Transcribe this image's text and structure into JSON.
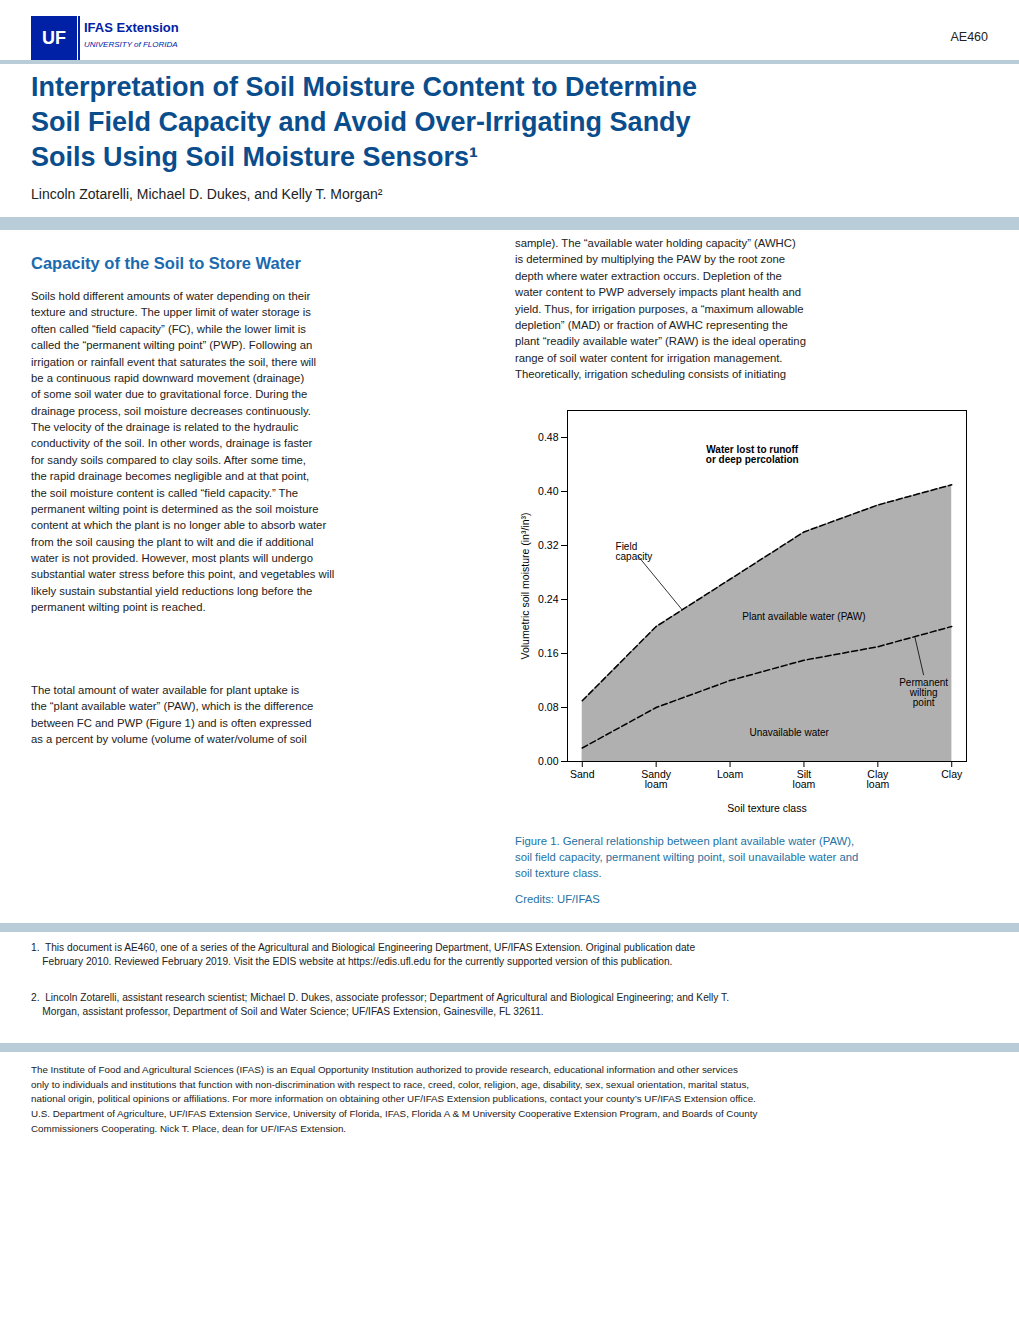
{
  "page": {
    "logo": "UF",
    "brand": "IFAS Extension",
    "brand_sub": "UNIVERSITY of FLORIDA",
    "doc_id": "AE460",
    "title": "Interpretation of Soil Moisture Content to Determine\nSoil Field Capacity and Avoid Over-Irrigating Sandy\nSoils Using Soil Moisture Sensors¹",
    "authors": "Lincoln Zotarelli, Michael D. Dukes, and Kelly T. Morgan²",
    "section_title": "Capacity of the Soil to Store Water",
    "body_col1": [
      "Soils hold different amounts of water depending on their\ntexture and structure. The upper limit of water storage is\noften called “field capacity” (FC), while the lower limit is\ncalled the “permanent wilting point” (PWP). Following an\nirrigation or rainfall event that saturates the soil, there will\nbe a continuous rapid downward movement (drainage)\nof some soil water due to gravitational force. During the\ndrainage process, soil moisture decreases continuously.\nThe velocity of the drainage is related to the hydraulic\nconductivity of the soil. In other words, drainage is faster\nfor sandy soils compared to clay soils. After some time,\nthe rapid drainage becomes negligible and at that point,\nthe soil moisture content is called “field capacity.” The\npermanent wilting point is determined as the soil moisture\ncontent at which the plant is no longer able to absorb water\nfrom the soil causing the plant to wilt and die if additional\nwater is not provided. However, most plants will undergo\nsubstantial water stress before this point, and vegetables will\nlikely sustain substantial yield reductions long before the\npermanent wilting point is reached.",
      "The total amount of water available for plant uptake is\nthe “plant available water” (PAW), which is the difference\nbetween FC and PWP (Figure 1) and is often expressed\nas a percent by volume (volume of water/volume of soil"
    ],
    "body_col2": "sample). The “available water holding capacity” (AWHC)\nis determined by multiplying the PAW by the root zone\ndepth where water extraction occurs. Depletion of the\nwater content to PWP adversely impacts plant health and\nyield. Thus, for irrigation purposes, a “maximum allowable\ndepletion” (MAD) or fraction of AWHC representing the\nplant “readily available water” (RAW) is the ideal operating\nrange of soil water content for irrigation management.\nTheoretically, irrigation scheduling consists of initiating",
    "caption": "Figure 1. General relationship between plant available water (PAW),\nsoil field capacity, permanent wilting point, soil unavailable water and\nsoil texture class.",
    "credits": "Credits: UF/IFAS",
    "footnotes": [
      "1.  This document is AE460, one of a series of the Agricultural and Biological Engineering Department, UF/IFAS Extension. Original publication date\n    February 2010. Reviewed February 2019. Visit the EDIS website at https://edis.ufl.edu for the currently supported version of this publication.",
      "2.  Lincoln Zotarelli, assistant research scientist; Michael D. Dukes, associate professor; Department of Agricultural and Biological Engineering; and Kelly T.\n    Morgan, assistant professor, Department of Soil and Water Science; UF/IFAS Extension, Gainesville, FL 32611."
    ],
    "footer": "The Institute of Food and Agricultural Sciences (IFAS) is an Equal Opportunity Institution authorized to provide research, educational information and other services\nonly to individuals and institutions that function with non-discrimination with respect to race, creed, color, religion, age, disability, sex, sexual orientation, marital status,\nnational origin, political opinions or affiliations. For more information on obtaining other UF/IFAS Extension publications, contact your county’s UF/IFAS Extension office.\nU.S. Department of Agriculture, UF/IFAS Extension Service, University of Florida, IFAS, Florida A & M University Cooperative Extension Program, and Boards of County\nCommissioners Cooperating. Nick T. Place, dean for UF/IFAS Extension.",
    "uf_blue": "#0021A5",
    "title_color": "#0a4d8c",
    "section_title_color": "#1a6aaf",
    "divider_color": "#b8cdd8",
    "link_color": "#2471a3",
    "text_color": "#222222"
  },
  "chart_data": {
    "type": "area",
    "categories": [
      "Sand",
      "Sandy\nloam",
      "Loam",
      "Silt\nloam",
      "Clay\nloam",
      "Clay"
    ],
    "series": [
      {
        "values": [
          0.09,
          0.2,
          0.27,
          0.34,
          0.38,
          0.41
        ],
        "color": "#b0b0b0",
        "line_style": "dashed"
      },
      {
        "values": [
          0.02,
          0.08,
          0.12,
          0.15,
          0.17,
          0.2
        ],
        "color": "#b0b0b0",
        "line_style": "dashed"
      }
    ],
    "ylim": [
      0.0,
      0.52
    ],
    "yticks": [
      {
        "value": 0.0,
        "label": "0.00"
      },
      0.08,
      0.16,
      0.24,
      0.32,
      {
        "value": 0.4,
        "label": "0.40"
      },
      0.48
    ],
    "xlabel": "Soil texture class",
    "ylabel": "Volumetric soil moisture (in³/in³)",
    "grid": false,
    "annotations": [
      "Water lost to runoff\nor deep percolation",
      "Field\ncapacity",
      "Plant available water (PAW)",
      "Unavailable water",
      "Permanent\nwilting\npoint"
    ]
  }
}
